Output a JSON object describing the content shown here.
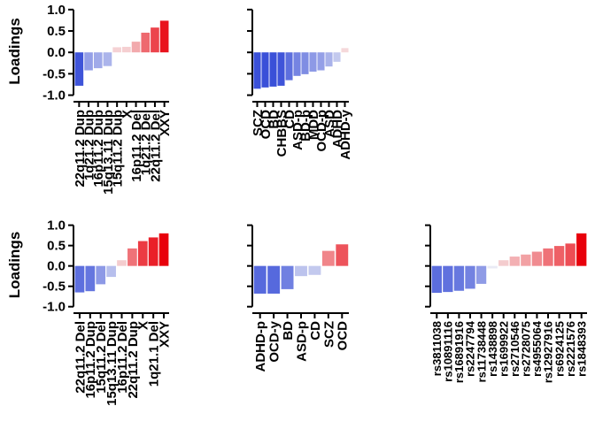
{
  "shared": {
    "ylabel": "Loadings",
    "yticks": [
      1.0,
      0.5,
      0.0,
      -0.5,
      -1.0
    ],
    "ytick_labels": [
      "1.0",
      "0.5",
      "0.0",
      "-0.5",
      "-1.0"
    ],
    "ylim": [
      -1.05,
      1.1
    ],
    "color_scale": {
      "negative": "#3a50d8",
      "neutral": "#f7f7f7",
      "positive": "#e8000b"
    }
  },
  "chart_data": [
    {
      "type": "bar",
      "categories": [
        "22q11.2 Dup",
        "1q21.2 Dup",
        "16p11.2 Dup",
        "15q13.11 Dup",
        "15q11.2 Dup",
        "X",
        "16p11.2 Del",
        "1q21.2 Del",
        "22q11.2 Del",
        "XXY"
      ],
      "values": [
        -0.78,
        -0.42,
        -0.37,
        -0.32,
        0.12,
        0.13,
        0.25,
        0.46,
        0.58,
        0.74
      ],
      "ylabel": "Loadings",
      "ylim": [
        -1.05,
        1.1
      ]
    },
    {
      "type": "bar",
      "categories": [
        "SCZ",
        "OCD",
        "BD",
        "CHBBS",
        "CD",
        "ASD-p",
        "BD-p",
        "MDD",
        "OCD-p",
        "ASD",
        "ADHD",
        "ADHD-y"
      ],
      "values": [
        -0.85,
        -0.82,
        -0.8,
        -0.78,
        -0.65,
        -0.55,
        -0.51,
        -0.45,
        -0.42,
        -0.33,
        -0.22,
        0.1
      ],
      "ylabel": "",
      "ylim": [
        -1.05,
        1.1
      ]
    },
    {
      "type": "bar",
      "categories": [
        "22q11.2 Del",
        "16p11.2 Dup",
        "15q11.2 Del",
        "15q13.11 Dup",
        "16p11.2 Del",
        "22q11.2 Dup",
        "X",
        "1q21.1 Del",
        "XXY"
      ],
      "values": [
        -0.65,
        -0.62,
        -0.45,
        -0.27,
        0.14,
        0.43,
        0.61,
        0.7,
        0.8
      ],
      "ylabel": "Loadings",
      "ylim": [
        -1.05,
        1.1
      ]
    },
    {
      "type": "bar",
      "categories": [
        "ADHD-p",
        "OCD-y",
        "BD",
        "ASD-p",
        "CD",
        "SCZ",
        "OCD"
      ],
      "values": [
        -0.68,
        -0.68,
        -0.57,
        -0.25,
        -0.22,
        0.37,
        0.53
      ],
      "ylabel": "",
      "ylim": [
        -1.05,
        1.1
      ]
    },
    {
      "type": "bar",
      "categories": [
        "rs3811038",
        "rs10891116",
        "rs16891916",
        "rs2247794",
        "rs11738448",
        "rs1438898",
        "rs1699922",
        "rs2710546",
        "rs2728075",
        "rs4955064",
        "rs12927916",
        "rs6924125",
        "rs2221576",
        "rs1848393"
      ],
      "values": [
        -0.66,
        -0.64,
        -0.61,
        -0.56,
        -0.44,
        -0.06,
        0.14,
        0.23,
        0.28,
        0.35,
        0.43,
        0.49,
        0.55,
        0.8
      ],
      "ylabel": "",
      "ylim": [
        -1.05,
        1.1
      ]
    }
  ]
}
